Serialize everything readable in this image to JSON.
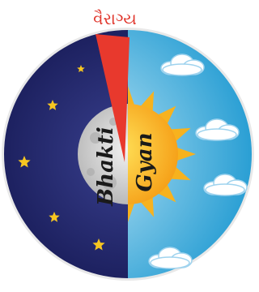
{
  "top_label": "વૈરાગ્ય",
  "left_label": "Bhakti",
  "right_label": "Gyan"
}
